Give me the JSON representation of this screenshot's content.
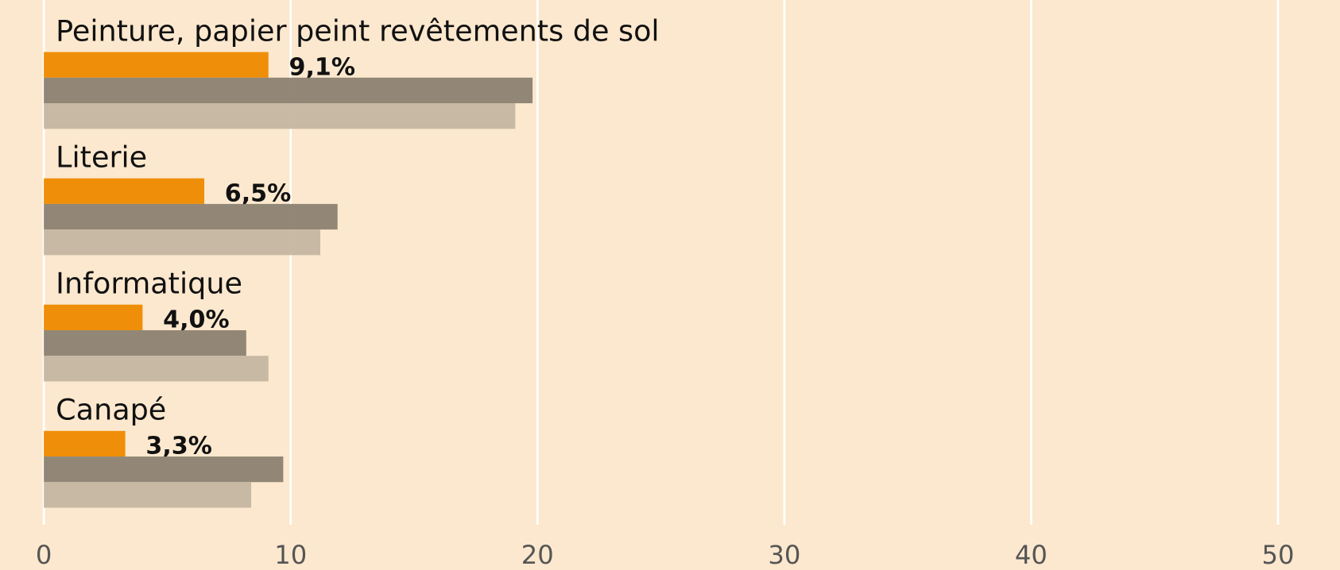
{
  "chart_data": {
    "type": "bar",
    "orientation": "horizontal",
    "categories": [
      "Peinture, papier peint revêtements de sol",
      "Literie",
      "Informatique",
      "Canapé"
    ],
    "series": [
      {
        "color": "#ee8a00",
        "values": [
          9.1,
          6.5,
          4.0,
          3.3
        ],
        "value_labels": [
          "9,1%",
          "6,5%",
          "4,0%",
          "3,3%"
        ]
      },
      {
        "color": "#8e8373",
        "values": [
          19.8,
          11.9,
          8.2,
          9.7
        ]
      },
      {
        "color": "#c6b7a2",
        "values": [
          19.1,
          11.2,
          9.1,
          8.4
        ]
      }
    ],
    "xlim": [
      0,
      52.5
    ],
    "xticks": [
      0,
      10,
      20,
      30,
      40,
      50
    ],
    "grid": true
  }
}
